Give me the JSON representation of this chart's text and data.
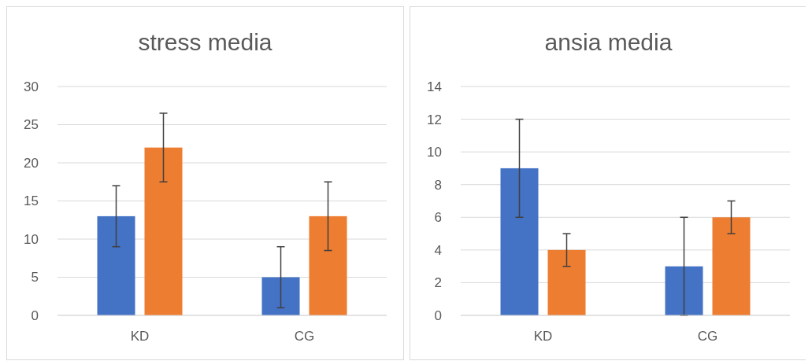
{
  "chart_data": [
    {
      "type": "bar",
      "title": "stress media",
      "categories": [
        "KD",
        "CG"
      ],
      "series": [
        {
          "color": "#4472c4",
          "values": [
            13,
            5
          ],
          "errors": [
            4,
            4
          ]
        },
        {
          "color": "#ed7d31",
          "values": [
            22,
            13
          ],
          "errors": [
            4.5,
            4.5
          ]
        }
      ],
      "ylim": [
        0,
        30
      ],
      "yticks": [
        0,
        5,
        10,
        15,
        20,
        25,
        30
      ],
      "grid": "y"
    },
    {
      "type": "bar",
      "title": "ansia media",
      "categories": [
        "KD",
        "CG"
      ],
      "series": [
        {
          "color": "#4472c4",
          "values": [
            9,
            3
          ],
          "errors": [
            3,
            3
          ]
        },
        {
          "color": "#ed7d31",
          "values": [
            4,
            6
          ],
          "errors": [
            1,
            1
          ]
        }
      ],
      "ylim": [
        0,
        14
      ],
      "yticks": [
        0,
        2,
        4,
        6,
        8,
        10,
        12,
        14
      ],
      "grid": "y"
    }
  ]
}
